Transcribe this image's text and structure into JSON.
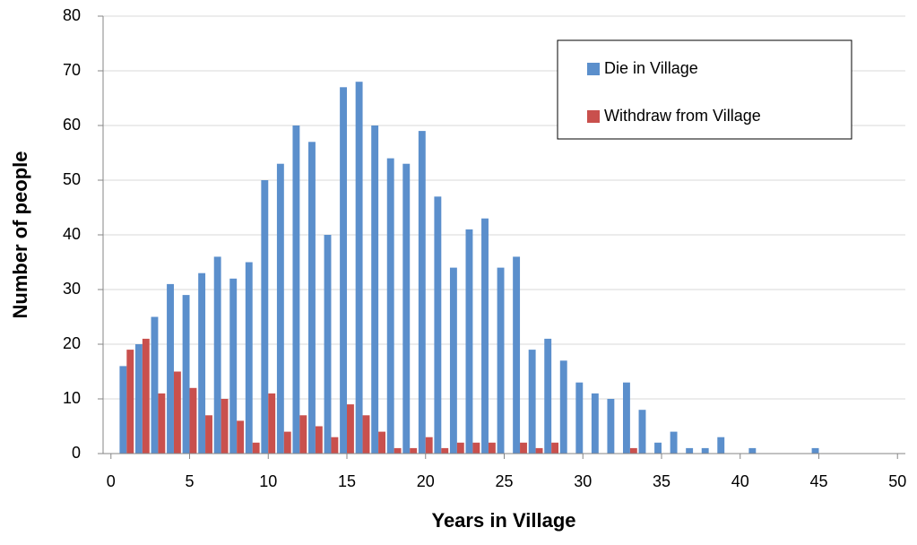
{
  "chart_data": {
    "type": "bar",
    "x_label": "Years in Village",
    "y_label": "Number of people",
    "x": [
      1,
      2,
      3,
      4,
      5,
      6,
      7,
      8,
      9,
      10,
      11,
      12,
      13,
      14,
      15,
      16,
      17,
      18,
      19,
      20,
      21,
      22,
      23,
      24,
      25,
      26,
      27,
      28,
      29,
      30,
      31,
      32,
      33,
      34,
      35,
      36,
      37,
      38,
      39,
      40,
      41,
      42,
      43,
      44,
      45,
      46,
      47,
      48,
      49,
      50
    ],
    "series": [
      {
        "name": "Die in Village",
        "color": "#5b8fcc",
        "values": [
          16,
          20,
          25,
          31,
          29,
          33,
          36,
          32,
          35,
          50,
          53,
          60,
          57,
          40,
          67,
          68,
          60,
          54,
          53,
          59,
          47,
          34,
          41,
          43,
          34,
          36,
          19,
          21,
          17,
          13,
          11,
          10,
          13,
          8,
          2,
          4,
          1,
          1,
          3,
          0,
          1,
          0,
          0,
          0,
          1,
          0,
          0,
          0,
          0,
          0
        ]
      },
      {
        "name": "Withdraw from Village",
        "color": "#c9504d",
        "values": [
          19,
          21,
          11,
          15,
          12,
          7,
          10,
          6,
          2,
          11,
          4,
          7,
          5,
          3,
          9,
          7,
          4,
          1,
          1,
          3,
          1,
          2,
          2,
          2,
          0,
          2,
          1,
          2,
          0,
          0,
          0,
          0,
          1,
          0,
          0,
          0,
          0,
          0,
          0,
          0,
          0,
          0,
          0,
          0,
          0,
          0,
          0,
          0,
          0,
          0
        ]
      }
    ],
    "xlim": [
      -0.5,
      50.5
    ],
    "xticks": [
      0,
      5,
      10,
      15,
      20,
      25,
      30,
      35,
      40,
      45,
      50
    ],
    "ylim": [
      0,
      80
    ],
    "yticks": [
      0,
      10,
      20,
      30,
      40,
      50,
      60,
      70,
      80
    ],
    "grid": true,
    "legend": "top-right"
  }
}
